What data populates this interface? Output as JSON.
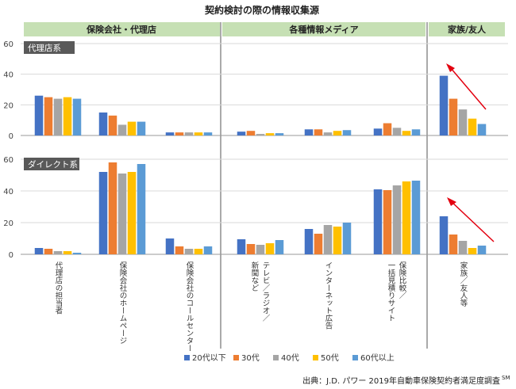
{
  "chart_data": {
    "type": "bar",
    "title": "契約検討の際の情報収集源",
    "source": "出典：J.D. パワー 2019年自動車保険契約者満足度調査",
    "source_sup": "SM",
    "group_headers": [
      "保険会社・代理店",
      "各種情報メディア",
      "家族/友人"
    ],
    "series_names": [
      "20代以下",
      "30代",
      "40代",
      "50代",
      "60代以上"
    ],
    "colors": [
      "#4472C4",
      "#ED7D31",
      "#A5A5A5",
      "#FFC000",
      "#5B9BD5"
    ],
    "categories": [
      [
        "代理店の担当者"
      ],
      [
        "保険会社のホームページ"
      ],
      [
        "保険会社のコールセンター"
      ],
      [
        "テレビ／ラジオ／",
        "新聞など"
      ],
      [
        "インターネット広告"
      ],
      [
        "保険比較／",
        "一括見積りサイト"
      ],
      [
        "家族／友人等"
      ]
    ],
    "panels": [
      {
        "label": "代理店系",
        "ylim": [
          0,
          60
        ],
        "yticks": [
          0,
          20,
          40,
          60
        ],
        "values": [
          [
            26,
            25,
            24,
            25,
            24
          ],
          [
            15,
            13,
            7,
            9,
            9
          ],
          [
            2,
            2,
            2,
            2,
            2
          ],
          [
            2.5,
            3,
            1,
            1.5,
            1.5
          ],
          [
            4,
            4,
            2,
            3,
            3.5
          ],
          [
            4.5,
            8,
            5,
            3,
            4
          ],
          [
            39,
            24,
            17,
            11,
            7.5
          ]
        ]
      },
      {
        "label": "ダイレクト系",
        "ylim": [
          0,
          60
        ],
        "yticks": [
          0,
          20,
          40,
          60
        ],
        "values": [
          [
            4,
            3.5,
            2,
            2,
            1
          ],
          [
            52,
            58,
            51,
            52,
            57
          ],
          [
            10,
            5,
            3.5,
            3.5,
            5
          ],
          [
            9.5,
            6.5,
            6,
            7,
            9
          ],
          [
            16,
            13,
            18.5,
            17.5,
            20
          ],
          [
            41,
            40.5,
            43.5,
            46,
            46.5
          ],
          [
            24,
            12.5,
            8.5,
            4,
            5.5
          ]
        ]
      }
    ]
  }
}
